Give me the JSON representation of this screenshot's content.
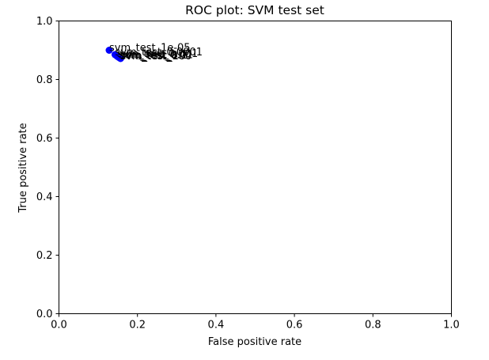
{
  "chart_data": {
    "type": "scatter",
    "title": "ROC plot: SVM test set",
    "xlabel": "False positive rate",
    "ylabel": "True positive rate",
    "xlim": [
      0.0,
      1.0
    ],
    "ylim": [
      0.0,
      1.0
    ],
    "xticks": [
      "0.0",
      "0.2",
      "0.4",
      "0.6",
      "0.8",
      "1.0"
    ],
    "yticks": [
      "0.0",
      "0.2",
      "0.4",
      "0.6",
      "0.8",
      "1.0"
    ],
    "grid": false,
    "marker_color": "#0000ff",
    "points": [
      {
        "x": 0.128,
        "y": 0.9,
        "label": "svm_test_1e-05"
      },
      {
        "x": 0.143,
        "y": 0.885,
        "label": "svm_test_0.0001"
      },
      {
        "x": 0.148,
        "y": 0.88,
        "label": "svm_test_0.001"
      },
      {
        "x": 0.152,
        "y": 0.876,
        "label": "svm_test_0.01"
      },
      {
        "x": 0.155,
        "y": 0.874,
        "label": "svm_test_0.1"
      },
      {
        "x": 0.156,
        "y": 0.873,
        "label": "svm_test_1"
      },
      {
        "x": 0.157,
        "y": 0.872,
        "label": "svm_test_10"
      },
      {
        "x": 0.157,
        "y": 0.872,
        "label": "svm_test_100"
      }
    ]
  }
}
